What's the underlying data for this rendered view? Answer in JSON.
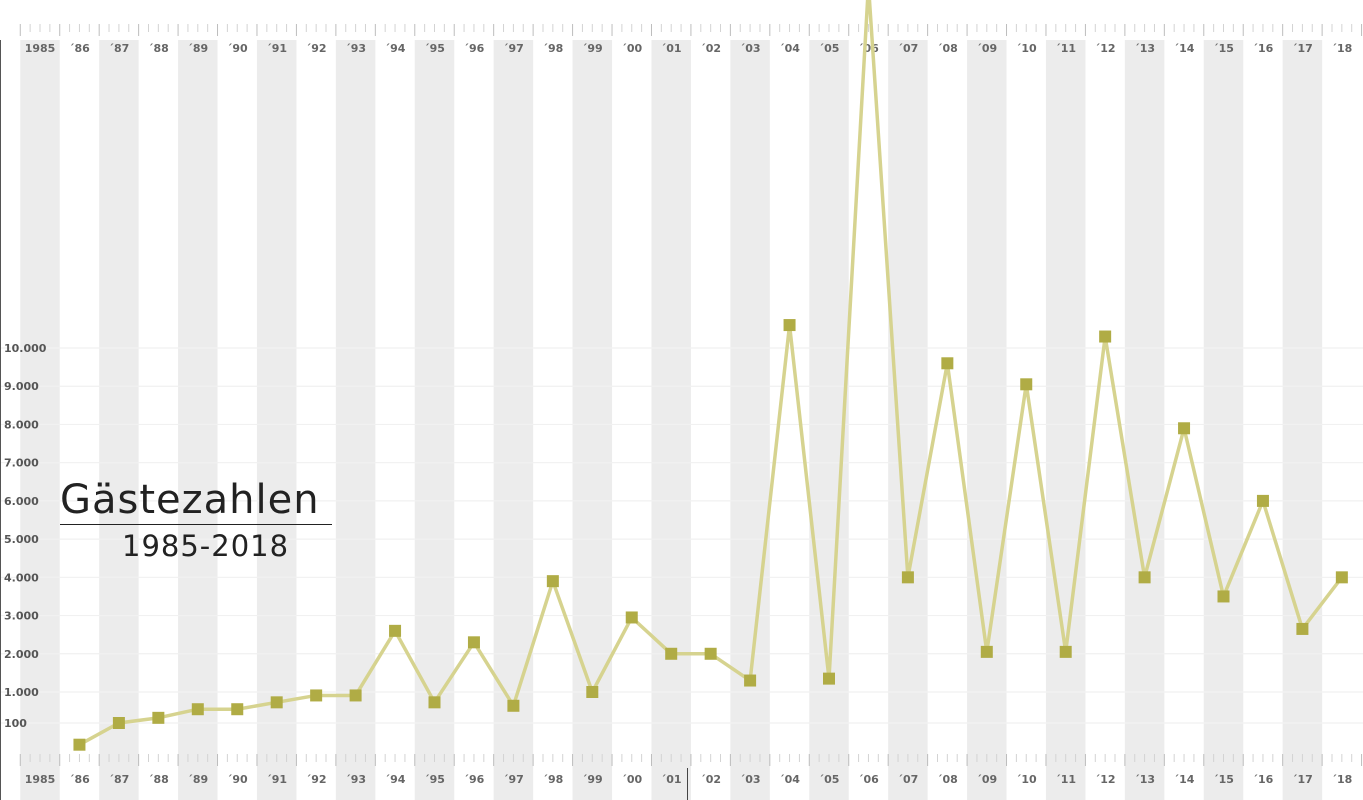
{
  "colors": {
    "line": "#d6d38f",
    "marker": "#b0ac45",
    "band": "#ececec",
    "grid": "#f1f1f1",
    "axis_text": "#666666"
  },
  "chart_data": {
    "type": "line",
    "title": "Gästezahlen",
    "subtitle": "1985-2018",
    "x_tick_labels": [
      "1985",
      "´86",
      "´87",
      "´88",
      "´89",
      "´90",
      "´91",
      "´92",
      "´93",
      "´94",
      "´95",
      "´96",
      "´97",
      "´98",
      "´99",
      "´00",
      "´01",
      "´02",
      "´03",
      "´04",
      "´05",
      "´06",
      "´07",
      "´08",
      "´09",
      "´10",
      "´11",
      "´12",
      "´13",
      "´14",
      "´15",
      "´16",
      "´17",
      "´18"
    ],
    "x": [
      1986,
      1987,
      1988,
      1989,
      1990,
      1991,
      1992,
      1993,
      1994,
      1995,
      1996,
      1997,
      1998,
      1999,
      2000,
      2001,
      2002,
      2003,
      2004,
      2005,
      2006,
      2007,
      2008,
      2009,
      2010,
      2011,
      2012,
      2013,
      2014,
      2015,
      2016,
      2017,
      2018
    ],
    "y_tick_labels": [
      {
        "value": 100,
        "label": "100"
      },
      {
        "value": 1000,
        "label": "1.000"
      },
      {
        "value": 2000,
        "label": "2.000"
      },
      {
        "value": 3000,
        "label": "3.000"
      },
      {
        "value": 4000,
        "label": "4.000"
      },
      {
        "value": 5000,
        "label": "5.000"
      },
      {
        "value": 6000,
        "label": "6.000"
      },
      {
        "value": 7000,
        "label": "7.000"
      },
      {
        "value": 8000,
        "label": "8.000"
      },
      {
        "value": 9000,
        "label": "9.000"
      },
      {
        "value": 10000,
        "label": "10.000"
      }
    ],
    "series": [
      {
        "values": [
          30,
          100,
          250,
          500,
          500,
          700,
          900,
          900,
          2600,
          700,
          2300,
          600,
          3900,
          1000,
          2950,
          2000,
          2000,
          1300,
          10600,
          1350,
          19500,
          4000,
          9600,
          2050,
          9050,
          2050,
          10300,
          4000,
          7900,
          3500,
          6000,
          2650,
          4000
        ]
      }
    ],
    "grid": true
  }
}
